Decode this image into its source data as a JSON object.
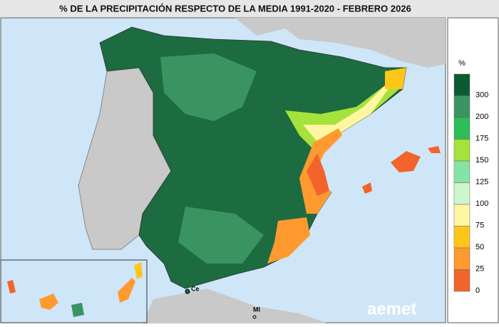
{
  "title": "% DE LA PRECIPITACIÓN RESPECTO DE LA MEDIA 1991-2020 - FEBRERO 2026",
  "legend": {
    "unit": "%",
    "items": [
      {
        "label": 300,
        "color": "#0b5a32"
      },
      {
        "label": 200,
        "color": "#3a9462"
      },
      {
        "label": 175,
        "color": "#2fbd58"
      },
      {
        "label": 150,
        "color": "#a6e23c"
      },
      {
        "label": 125,
        "color": "#86e3a6"
      },
      {
        "label": 100,
        "color": "#cdf6cd"
      },
      {
        "label": 75,
        "color": "#fff6a2"
      },
      {
        "label": 50,
        "color": "#ffc61a"
      },
      {
        "label": 25,
        "color": "#ff9a30"
      },
      {
        "label": 0,
        "color": "#f2642c"
      }
    ]
  },
  "places": [
    "Ce",
    "Ml"
  ],
  "logo": "aemet"
}
